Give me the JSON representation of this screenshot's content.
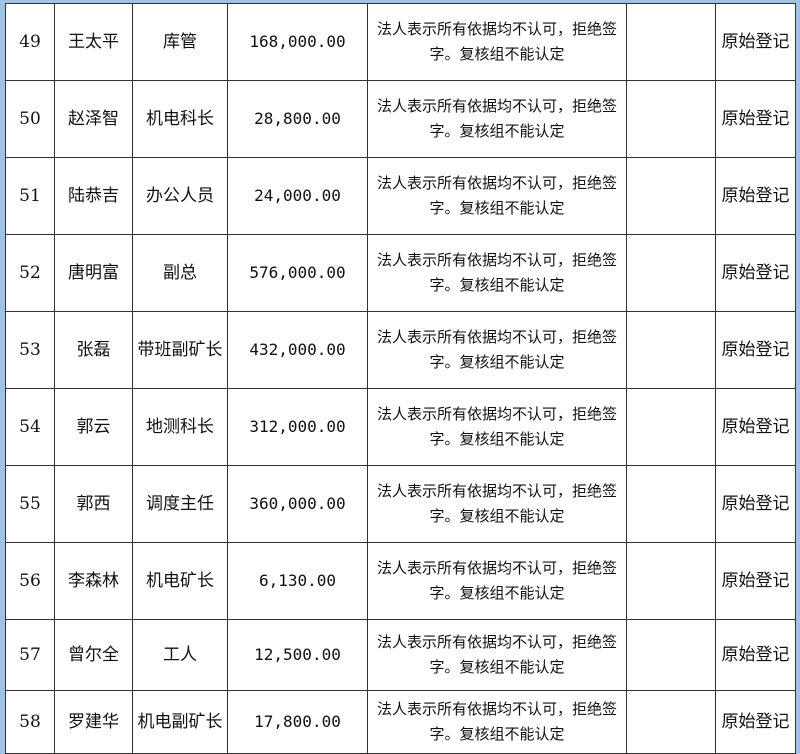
{
  "rows": [
    {
      "no": "49",
      "name": "王太平",
      "position": "库管",
      "amount": "168,000.00",
      "note": "法人表示所有依据均不认可，拒绝签字。复核组不能认定",
      "extra": "",
      "status": "原始登记"
    },
    {
      "no": "50",
      "name": "赵泽智",
      "position": "机电科长",
      "amount": "28,800.00",
      "note": "法人表示所有依据均不认可，拒绝签字。复核组不能认定",
      "extra": "",
      "status": "原始登记"
    },
    {
      "no": "51",
      "name": "陆恭吉",
      "position": "办公人员",
      "amount": "24,000.00",
      "note": "法人表示所有依据均不认可，拒绝签字。复核组不能认定",
      "extra": "",
      "status": "原始登记"
    },
    {
      "no": "52",
      "name": "唐明富",
      "position": "副总",
      "amount": "576,000.00",
      "note": "法人表示所有依据均不认可，拒绝签字。复核组不能认定",
      "extra": "",
      "status": "原始登记"
    },
    {
      "no": "53",
      "name": "张磊",
      "position": "带班副矿长",
      "amount": "432,000.00",
      "note": "法人表示所有依据均不认可，拒绝签字。复核组不能认定",
      "extra": "",
      "status": "原始登记"
    },
    {
      "no": "54",
      "name": "郭云",
      "position": "地测科长",
      "amount": "312,000.00",
      "note": "法人表示所有依据均不认可，拒绝签字。复核组不能认定",
      "extra": "",
      "status": "原始登记"
    },
    {
      "no": "55",
      "name": "郭西",
      "position": "调度主任",
      "amount": "360,000.00",
      "note": "法人表示所有依据均不认可，拒绝签字。复核组不能认定",
      "extra": "",
      "status": "原始登记"
    },
    {
      "no": "56",
      "name": "李森林",
      "position": "机电矿长",
      "amount": "6,130.00",
      "note": "法人表示所有依据均不认可，拒绝签字。复核组不能认定",
      "extra": "",
      "status": "原始登记"
    },
    {
      "no": "57",
      "name": "曾尔全",
      "position": "工人",
      "amount": "12,500.00",
      "note": "法人表示所有依据均不认可，拒绝签字。复核组不能认定",
      "extra": "",
      "status": "原始登记"
    },
    {
      "no": "58",
      "name": "罗建华",
      "position": "机电副矿长",
      "amount": "17,800.00",
      "note": "法人表示所有依据均不认可，拒绝签字。复核组不能认定",
      "extra": "",
      "status": "原始登记"
    }
  ]
}
